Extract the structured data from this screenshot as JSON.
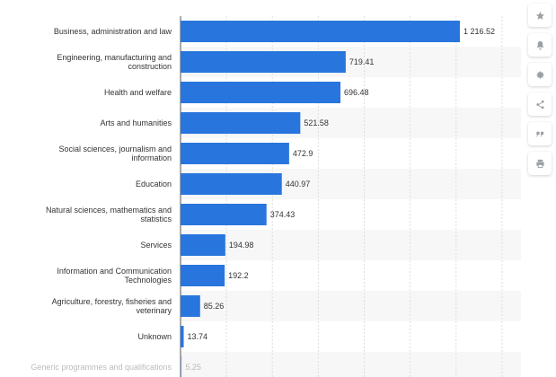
{
  "chart_data": {
    "type": "bar",
    "orientation": "horizontal",
    "title": "",
    "xlabel": "",
    "ylabel": "",
    "xlim": [
      0,
      1600
    ],
    "bar_color": "#2876dd",
    "grid": true,
    "categories": [
      "Business, administration and law",
      "Engineering, manufacturing and construction",
      "Health and welfare",
      "Arts and humanities",
      "Social sciences, journalism and information",
      "Education",
      "Natural sciences, mathematics and statistics",
      "Services",
      "Information and Communication Technologies",
      "Agriculture, forestry, fisheries and veterinary",
      "Unknown",
      "Generic programmes and qualifications"
    ],
    "values": [
      1216.52,
      719.41,
      696.48,
      521.58,
      472.9,
      440.97,
      374.43,
      194.98,
      192.2,
      85.26,
      13.74,
      5.25
    ],
    "value_labels": [
      "1 216.52",
      "719.41",
      "696.48",
      "521.58",
      "472.9",
      "440.97",
      "374.43",
      "194.98",
      "192.2",
      "85.26",
      "13.74",
      "5.25"
    ]
  },
  "toolbar": {
    "icons": [
      "star-icon",
      "bell-icon",
      "gear-icon",
      "share-icon",
      "quote-icon",
      "print-icon"
    ]
  }
}
